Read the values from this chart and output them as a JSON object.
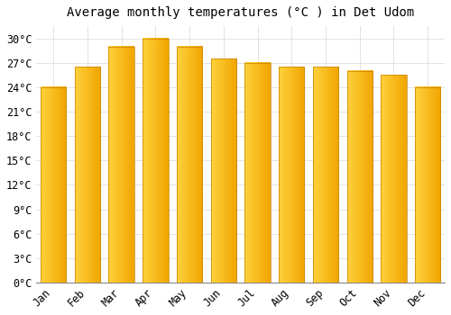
{
  "title": "Average monthly temperatures (°C ) in Det Udom",
  "months": [
    "Jan",
    "Feb",
    "Mar",
    "Apr",
    "May",
    "Jun",
    "Jul",
    "Aug",
    "Sep",
    "Oct",
    "Nov",
    "Dec"
  ],
  "values": [
    24,
    26.5,
    29,
    30,
    29,
    27.5,
    27,
    26.5,
    26.5,
    26,
    25.5,
    24
  ],
  "bar_color_left": "#FFCC44",
  "bar_color_right": "#F5A800",
  "bar_edge_color": "#C88000",
  "background_color": "#FFFFFF",
  "grid_color": "#DDDDDD",
  "ylim": [
    0,
    31.5
  ],
  "yticks": [
    0,
    3,
    6,
    9,
    12,
    15,
    18,
    21,
    24,
    27,
    30
  ],
  "ylabel_suffix": "°C",
  "title_fontsize": 10,
  "tick_fontsize": 8.5,
  "font_family": "monospace",
  "bar_width": 0.75
}
